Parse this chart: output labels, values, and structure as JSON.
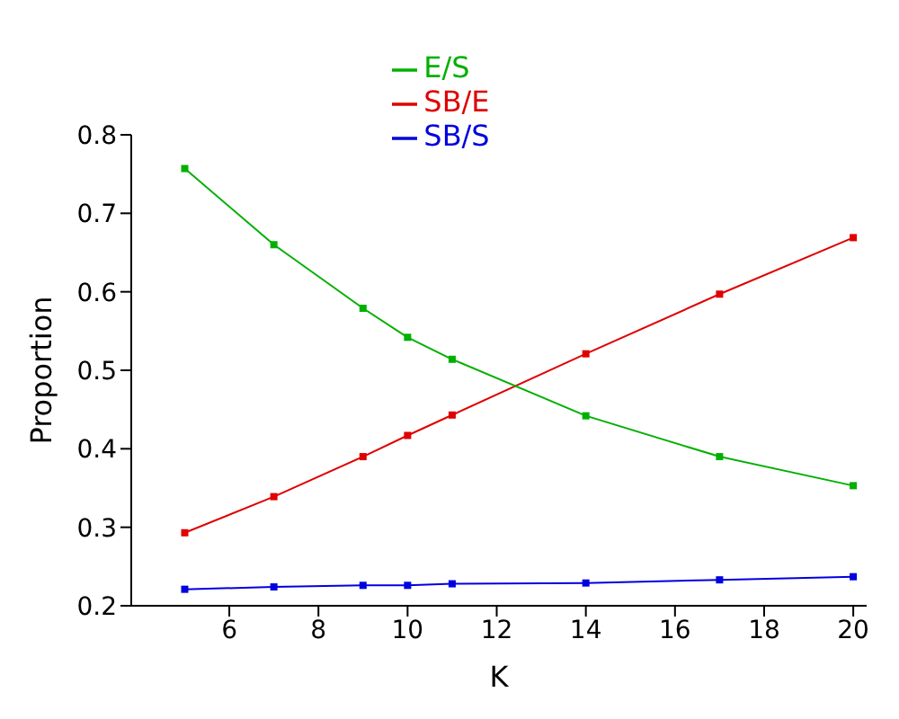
{
  "chart_data": {
    "type": "line",
    "xlabel": "K",
    "ylabel": "Proportion",
    "x": [
      5,
      7,
      9,
      10,
      11,
      14,
      17,
      20
    ],
    "series": [
      {
        "name": "SB/E",
        "color": "#e00000",
        "values": [
          0.293,
          0.339,
          0.39,
          0.417,
          0.443,
          0.521,
          0.597,
          0.669
        ]
      },
      {
        "name": "SB/S",
        "color": "#0000e0",
        "values": [
          0.221,
          0.224,
          0.226,
          0.226,
          0.228,
          0.229,
          0.233,
          0.237
        ]
      },
      {
        "name": "E/S",
        "color": "#00b000",
        "values": [
          0.757,
          0.66,
          0.579,
          0.542,
          0.514,
          0.442,
          0.39,
          0.353
        ]
      }
    ],
    "xlim": [
      3.8,
      20.3
    ],
    "xticks": [
      6,
      8,
      10,
      12,
      14,
      16,
      18,
      20
    ],
    "ylim": [
      0.2,
      0.8
    ],
    "yticks": [
      0.2,
      0.3,
      0.4,
      0.5,
      0.6,
      0.7,
      0.8
    ],
    "grid": false,
    "legend": "top",
    "marker": "square",
    "line_style": "solid"
  }
}
